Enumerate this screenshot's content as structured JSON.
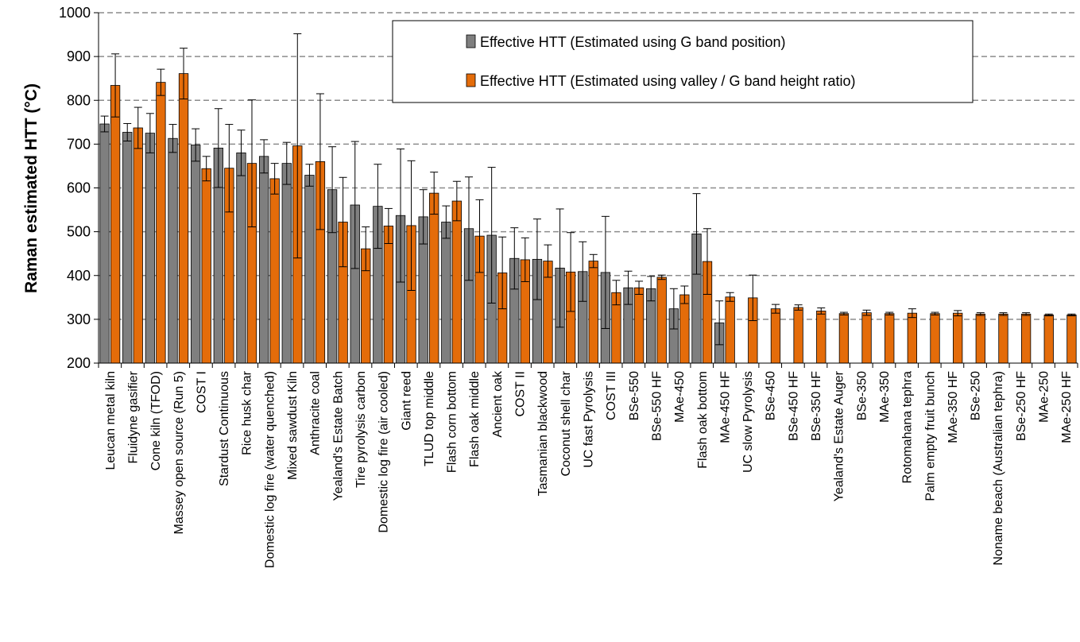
{
  "chart_data": {
    "type": "bar",
    "title": "",
    "xlabel": "",
    "ylabel": "Raman estimated HTT (°C)",
    "ylim": [
      200,
      1000
    ],
    "yticks": [
      200,
      300,
      400,
      500,
      600,
      700,
      800,
      900,
      1000
    ],
    "grid": true,
    "legend_position": "top-right",
    "colors": {
      "gband": "#7f7f7f",
      "ratio": "#e46c0a"
    },
    "categories": [
      "Leucan metal kiln",
      "Fluidyne gasifier",
      "Cone kiln (TFOD)",
      "Massey open source (Run 5)",
      "COST I",
      "Stardust Continuous",
      "Rice husk char",
      "Domestic log fire (water quenched)",
      "Mixed sawdust Kiln",
      "Anthracite coal",
      "Yealand's Estate Batch",
      "Tire pyrolysis carbon",
      "Domestic log fire (air cooled)",
      "Giant reed",
      "TLUD top middle",
      "Flash corn bottom",
      "Flash oak middle",
      "Ancient oak",
      "COST II",
      "Tasmanian blackwood",
      "Coconut shell char",
      "UC fast Pyrolysis",
      "COST III",
      "BSe-550",
      "BSe-550 HF",
      "MAe-450",
      "Flash oak bottom",
      "MAe-450 HF",
      "UC slow Pyrolysis",
      "BSe-450",
      "BSe-450 HF",
      "BSe-350 HF",
      "Yealand's Estate Auger",
      "BSe-350",
      "MAe-350",
      "Rotomahana tephra",
      "Palm empty fruit bunch",
      "MAe-350 HF",
      "BSe-250",
      "Noname beach (Australian tephra)",
      "BSe-250 HF",
      "MAe-250",
      "MAe-250 HF"
    ],
    "series": [
      {
        "name": "Effective HTT (Estimated using G band position)",
        "values": [
          746,
          727,
          725,
          713,
          698,
          691,
          680,
          672,
          656,
          629,
          596,
          561,
          558,
          537,
          534,
          522,
          507,
          492,
          439,
          437,
          417,
          409,
          407,
          372,
          370,
          324,
          495,
          292,
          null,
          null,
          null,
          null,
          null,
          null,
          null,
          null,
          null,
          null,
          null,
          null,
          null,
          null,
          null
        ],
        "errors": [
          18,
          20,
          45,
          32,
          37,
          90,
          52,
          38,
          48,
          25,
          98,
          145,
          96,
          152,
          62,
          37,
          118,
          155,
          70,
          92,
          135,
          68,
          128,
          38,
          28,
          46,
          92,
          50,
          null,
          null,
          null,
          null,
          null,
          null,
          null,
          null,
          null,
          null,
          null,
          null,
          null,
          null,
          null
        ]
      },
      {
        "name": "Effective HTT (Estimated using valley / G band height ratio)",
        "values": [
          834,
          737,
          841,
          861,
          644,
          645,
          656,
          621,
          696,
          660,
          522,
          461,
          513,
          514,
          588,
          570,
          490,
          406,
          436,
          433,
          408,
          433,
          361,
          372,
          396,
          356,
          432,
          351,
          349,
          324,
          327,
          319,
          313,
          315,
          313,
          314,
          313,
          314,
          312,
          312,
          312,
          310,
          310
        ],
        "errors": [
          72,
          47,
          30,
          58,
          28,
          100,
          145,
          35,
          256,
          155,
          102,
          50,
          40,
          148,
          48,
          45,
          83,
          82,
          50,
          37,
          90,
          15,
          28,
          15,
          5,
          20,
          75,
          10,
          52,
          10,
          6,
          7,
          3,
          6,
          3,
          10,
          3,
          6,
          3,
          3,
          3,
          2,
          2
        ]
      }
    ]
  }
}
